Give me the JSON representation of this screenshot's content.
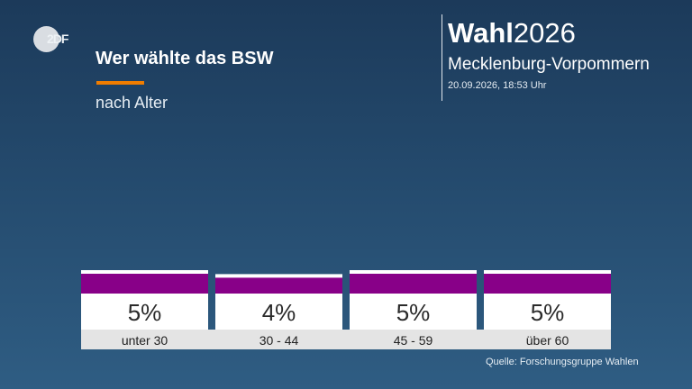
{
  "header": {
    "logo_text": "2DF",
    "headline": "Wer wählte das BSW",
    "subline": "nach Alter"
  },
  "brand": {
    "bold": "Wahl",
    "year": "2026",
    "region": "Mecklenburg-Vorpommern",
    "timestamp": "20.09.2026, 18:53 Uhr"
  },
  "footer": {
    "source": "Quelle: Forschungsgruppe Wahlen"
  },
  "colors": {
    "bar": "#880088",
    "card": "#ffffff",
    "label_band": "#e4e4e4",
    "accent": "#f07d00"
  },
  "chart_data": {
    "type": "bar",
    "title": "Wer wählte das BSW",
    "subtitle": "nach Alter",
    "categories": [
      "unter 30",
      "30 - 44",
      "45 - 59",
      "über 60"
    ],
    "values": [
      5,
      4,
      5,
      5
    ],
    "value_labels": [
      "5%",
      "4%",
      "5%",
      "5%"
    ],
    "ylim": [
      0,
      5
    ]
  }
}
